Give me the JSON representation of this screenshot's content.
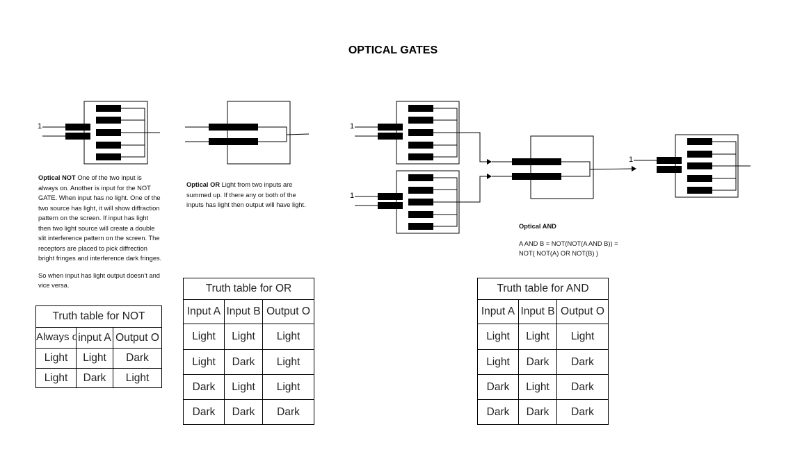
{
  "title": "OPTICAL GATES",
  "not_gate": {
    "input_label": "1",
    "desc_bold": "Optical NOT",
    "desc_text": " One of the two input is always on. Another is input for the NOT GATE. When input has no light. One of the two source has light, it will show diffraction pattern on the screen. If input has light then two light source will create a double slit interference pattern on the screen. The receptors are placed to pick diffrection bright fringes and interference dark fringes.",
    "desc_text2": "So when input has light output doesn't and vice versa.",
    "table": {
      "caption": "Truth table for NOT",
      "headers": [
        "Always on",
        "input A",
        "Output O"
      ],
      "rows": [
        [
          "Light",
          "Light",
          "Dark"
        ],
        [
          "Light",
          "Dark",
          "Light"
        ]
      ]
    }
  },
  "or_gate": {
    "desc_bold": "Optical OR",
    "desc_text": " Light from two inputs are summed up. If there any or both of the inputs has light then output will have light.",
    "table": {
      "caption": "Truth table for OR",
      "headers": [
        "Input A",
        "Input B",
        "Output O"
      ],
      "rows": [
        [
          "Light",
          "Light",
          "Light"
        ],
        [
          "Light",
          "Dark",
          "Light"
        ],
        [
          "Dark",
          "Light",
          "Light"
        ],
        [
          "Dark",
          "Dark",
          "Dark"
        ]
      ]
    }
  },
  "and_gate": {
    "input_label_top": "1",
    "input_label_bottom": "1",
    "input_label_final": "1",
    "desc_bold": "Optical AND",
    "formula_line1": "A AND B = NOT(NOT(A AND B)) =",
    "formula_line2": "NOT( NOT(A) OR NOT(B) )",
    "table": {
      "caption": "Truth table for AND",
      "headers": [
        "Input A",
        "Input B",
        "Output O"
      ],
      "rows": [
        [
          "Light",
          "Light",
          "Light"
        ],
        [
          "Light",
          "Dark",
          "Dark"
        ],
        [
          "Dark",
          "Light",
          "Dark"
        ],
        [
          "Dark",
          "Dark",
          "Dark"
        ]
      ]
    }
  }
}
